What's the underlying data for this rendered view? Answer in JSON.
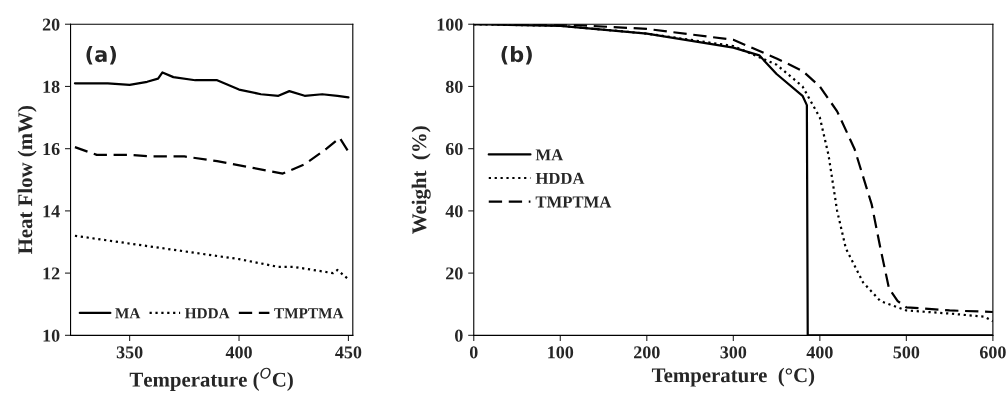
{
  "chart_data": [
    {
      "type": "line",
      "xlabel": "Temperature ($^{O}$C)",
      "ylabel": "Heat Flow (mW)",
      "annotations": [
        "(a)"
      ],
      "xlim": [
        323,
        452
      ],
      "ylim": [
        10,
        20
      ],
      "xticks": [
        350,
        400,
        450
      ],
      "yticks": [
        10,
        12,
        14,
        16,
        18,
        20
      ],
      "legend": "bottom",
      "grid": false,
      "series": [
        {
          "name": "MA",
          "color": "#000000",
          "line_style": "solid",
          "x": [
            325,
            340,
            350,
            358,
            363,
            365,
            370,
            380,
            390,
            400,
            410,
            418,
            423,
            430,
            438,
            445,
            450
          ],
          "values": [
            18.1,
            18.1,
            18.05,
            18.15,
            18.25,
            18.45,
            18.3,
            18.2,
            18.2,
            17.9,
            17.75,
            17.7,
            17.85,
            17.7,
            17.75,
            17.7,
            17.65
          ]
        },
        {
          "name": "HDDA",
          "color": "#000000",
          "line_style": "dotted",
          "x": [
            325,
            350,
            375,
            400,
            418,
            425,
            443,
            445,
            450
          ],
          "values": [
            13.2,
            12.95,
            12.7,
            12.45,
            12.2,
            12.2,
            12.0,
            12.1,
            11.8
          ]
        },
        {
          "name": "TMPTMA",
          "color": "#000000",
          "line_style": "dashed",
          "x": [
            325,
            335,
            350,
            360,
            375,
            390,
            405,
            420,
            430,
            440,
            446,
            450
          ],
          "values": [
            16.05,
            15.8,
            15.8,
            15.75,
            15.75,
            15.6,
            15.4,
            15.2,
            15.5,
            16.0,
            16.35,
            15.9
          ]
        }
      ]
    },
    {
      "type": "line",
      "xlabel": "Temperature  (°C)",
      "ylabel": "Weight  (%)",
      "annotations": [
        "(b)"
      ],
      "xlim": [
        0,
        600
      ],
      "ylim": [
        0,
        100
      ],
      "xticks": [
        0,
        100,
        200,
        300,
        400,
        500,
        600
      ],
      "yticks": [
        0,
        20,
        40,
        60,
        80,
        100
      ],
      "legend": "center left",
      "grid": false,
      "series": [
        {
          "name": "MA",
          "color": "#000000",
          "line_style": "solid",
          "x": [
            0,
            100,
            200,
            300,
            330,
            350,
            380,
            385,
            386,
            600
          ],
          "values": [
            100,
            99.5,
            97,
            92.5,
            90,
            84,
            77,
            74,
            0,
            0
          ]
        },
        {
          "name": "HDDA",
          "color": "#000000",
          "line_style": "dotted",
          "x": [
            0,
            100,
            200,
            300,
            350,
            380,
            400,
            410,
            420,
            430,
            450,
            470,
            500,
            550,
            590,
            600
          ],
          "values": [
            100,
            99.5,
            97,
            93,
            87,
            80,
            70,
            58,
            40,
            28,
            17,
            11,
            8,
            7,
            6,
            4.5
          ]
        },
        {
          "name": "TMPTMA",
          "color": "#000000",
          "line_style": "dashed",
          "x": [
            0,
            100,
            200,
            300,
            350,
            380,
            400,
            420,
            440,
            460,
            470,
            480,
            490,
            500,
            550,
            600
          ],
          "values": [
            100,
            100,
            98.5,
            95,
            89,
            85,
            80,
            72,
            60,
            42,
            28,
            15,
            11,
            9,
            8,
            7.5
          ]
        }
      ]
    }
  ]
}
